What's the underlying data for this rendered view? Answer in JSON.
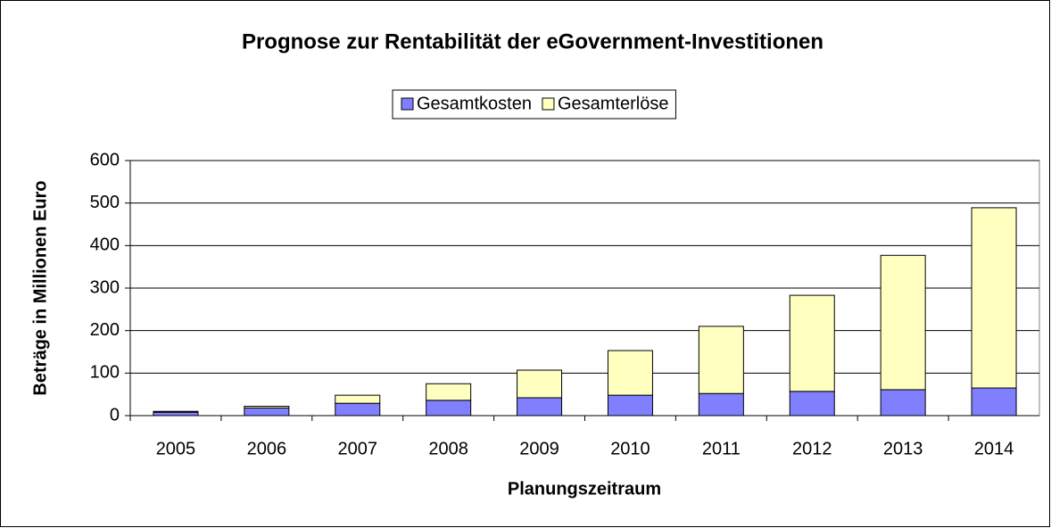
{
  "chart_data": {
    "type": "stacked_bar",
    "title": "Prognose zur Rentabilität der eGovernment-Investitionen",
    "x_label": "Planungszeitraum",
    "y_label": "Beträge in Millionen Euro",
    "categories": [
      "2005",
      "2006",
      "2007",
      "2008",
      "2009",
      "2010",
      "2011",
      "2012",
      "2013",
      "2014"
    ],
    "series": [
      {
        "name": "Gesamtkosten",
        "color": "#8080ff",
        "values": [
          8,
          18,
          29,
          36,
          42,
          48,
          52,
          57,
          61,
          65
        ]
      },
      {
        "name": "Gesamterlöse",
        "color": "#ffffc0",
        "values": [
          2,
          4,
          19,
          39,
          65,
          105,
          158,
          226,
          316,
          424
        ]
      }
    ],
    "ylim": [
      0,
      600
    ],
    "yticks": [
      0,
      100,
      200,
      300,
      400,
      500,
      600
    ],
    "grid": true,
    "legend": "top"
  }
}
